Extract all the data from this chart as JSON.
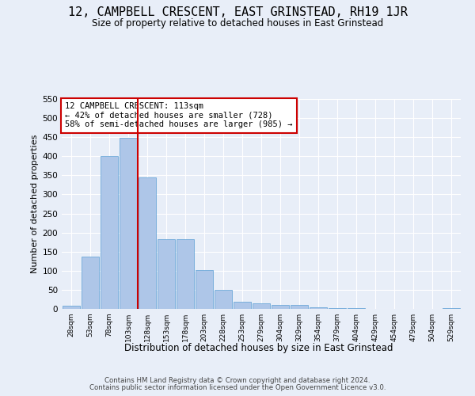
{
  "title": "12, CAMPBELL CRESCENT, EAST GRINSTEAD, RH19 1JR",
  "subtitle": "Size of property relative to detached houses in East Grinstead",
  "xlabel": "Distribution of detached houses by size in East Grinstead",
  "ylabel": "Number of detached properties",
  "footer_line1": "Contains HM Land Registry data © Crown copyright and database right 2024.",
  "footer_line2": "Contains public sector information licensed under the Open Government Licence v3.0.",
  "annotation_line1": "12 CAMPBELL CRESCENT: 113sqm",
  "annotation_line2": "← 42% of detached houses are smaller (728)",
  "annotation_line3": "58% of semi-detached houses are larger (985) →",
  "bar_values": [
    9,
    138,
    400,
    448,
    345,
    182,
    182,
    101,
    50,
    18,
    15,
    11,
    10,
    5,
    3,
    2,
    0,
    0,
    0,
    0,
    3
  ],
  "bar_labels": [
    "28sqm",
    "53sqm",
    "78sqm",
    "103sqm",
    "128sqm",
    "153sqm",
    "178sqm",
    "203sqm",
    "228sqm",
    "253sqm",
    "279sqm",
    "304sqm",
    "329sqm",
    "354sqm",
    "379sqm",
    "404sqm",
    "429sqm",
    "454sqm",
    "479sqm",
    "504sqm",
    "529sqm"
  ],
  "bar_color": "#aec6e8",
  "bar_edge_color": "#5a9fd4",
  "vline_x": 3.5,
  "vline_color": "#cc0000",
  "ylim": [
    0,
    550
  ],
  "yticks": [
    0,
    50,
    100,
    150,
    200,
    250,
    300,
    350,
    400,
    450,
    500,
    550
  ],
  "bg_color": "#e8eef8",
  "grid_color": "#ffffff",
  "annotation_box_color": "#cc0000",
  "annotation_bg": "#ffffff"
}
